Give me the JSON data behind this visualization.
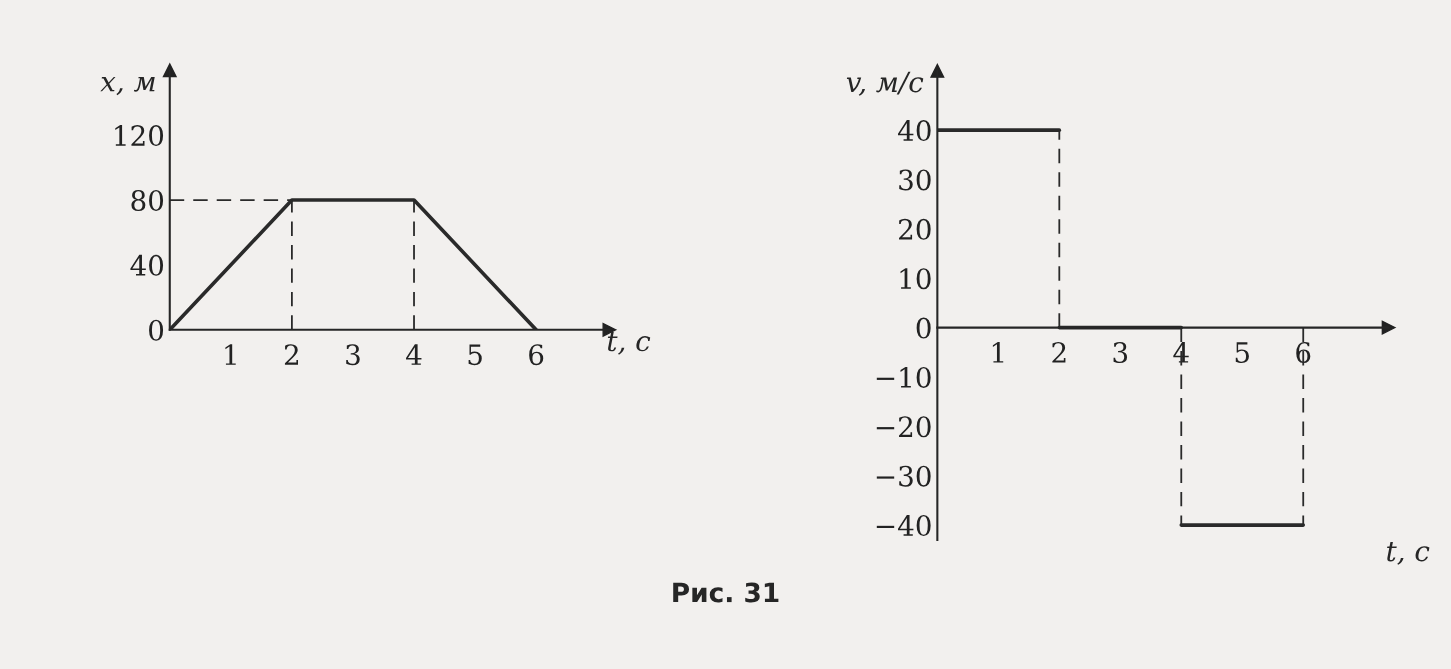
{
  "chart_data": [
    {
      "type": "line",
      "xlabel": "t, с",
      "ylabel": "x, м",
      "xlim": [
        0,
        7.2
      ],
      "ylim": [
        0,
        160
      ],
      "xticks": [
        1,
        2,
        3,
        4,
        5,
        6
      ],
      "yticks": [
        0,
        40,
        80,
        120
      ],
      "grid": false,
      "line_style": "solid",
      "annotations": [
        "Рис. 31"
      ],
      "series": [
        {
          "color": "#2a2a2a",
          "x": [
            0,
            2,
            4,
            6
          ],
          "values": [
            0,
            80,
            80,
            0
          ]
        },
        {
          "color": "#2a2a2a",
          "line_style": "dashed",
          "x": [
            0,
            2
          ],
          "values": [
            80,
            80
          ]
        },
        {
          "color": "#2a2a2a",
          "line_style": "dashed",
          "x": [
            2,
            2
          ],
          "values": [
            0,
            80
          ]
        },
        {
          "color": "#2a2a2a",
          "line_style": "dashed",
          "x": [
            4,
            4
          ],
          "values": [
            0,
            80
          ]
        }
      ]
    },
    {
      "type": "line",
      "xlabel": "t, с",
      "ylabel": "v, м/с",
      "xlim": [
        0,
        7.4
      ],
      "ylim": [
        -43,
        52
      ],
      "xticks": [
        1,
        2,
        3,
        4,
        5,
        6
      ],
      "yticks": [
        -40,
        -30,
        -20,
        -10,
        0,
        10,
        20,
        30,
        40
      ],
      "grid": false,
      "line_style": "solid",
      "series": [
        {
          "color": "#2a2a2a",
          "x": [
            0,
            2
          ],
          "values": [
            40,
            40
          ]
        },
        {
          "color": "#2a2a2a",
          "x": [
            2,
            4
          ],
          "values": [
            0,
            0
          ]
        },
        {
          "color": "#2a2a2a",
          "x": [
            4,
            6
          ],
          "values": [
            -40,
            -40
          ]
        },
        {
          "color": "#2a2a2a",
          "line_style": "dashed",
          "x": [
            2,
            2
          ],
          "values": [
            0,
            40
          ]
        },
        {
          "color": "#2a2a2a",
          "line_style": "dashed",
          "x": [
            4,
            4
          ],
          "values": [
            0,
            -40
          ]
        },
        {
          "color": "#2a2a2a",
          "line_style": "dashed",
          "x": [
            6,
            6
          ],
          "values": [
            0,
            -40
          ]
        }
      ]
    }
  ]
}
